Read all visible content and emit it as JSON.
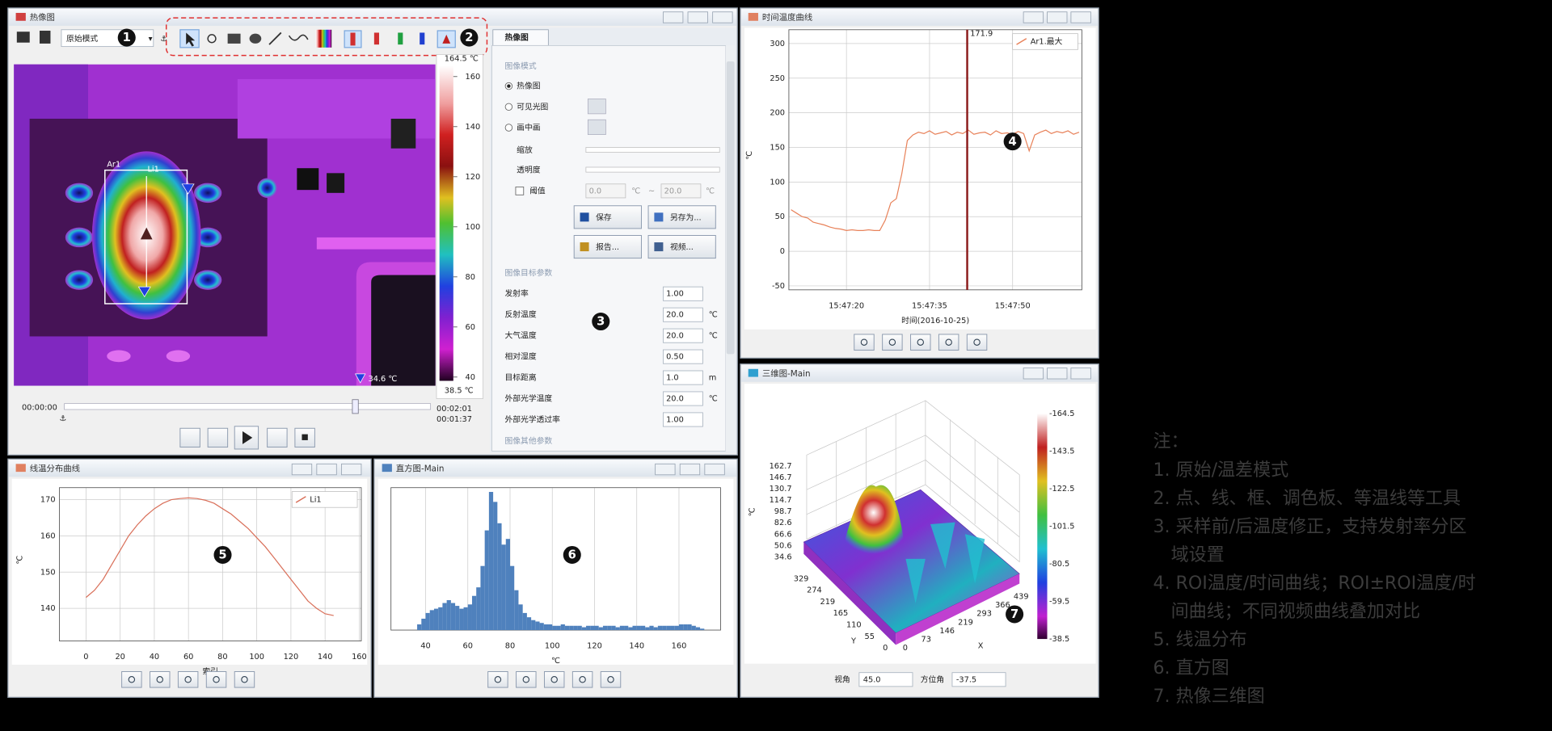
{
  "main_window": {
    "title": "热像图",
    "mode": "原始模式",
    "image_labels": {
      "area": "Ar1",
      "line": "Li1",
      "min": "34.6 ℃"
    },
    "colorbar": {
      "lim": [
        38.5,
        164.5
      ],
      "ticks": [
        160,
        140,
        120,
        100,
        80,
        60,
        40
      ],
      "max_label": "164.5 ℃",
      "min_label": "38.5 ℃"
    },
    "timeline": {
      "start": "00:00:00",
      "end": "00:02:01",
      "current": "00:01:37"
    },
    "panel": {
      "tab": "热像图",
      "mode_section": "图像模式",
      "modes": [
        "热像图",
        "可见光图",
        "画中画"
      ],
      "zoom": "缩放",
      "opacity": "透明度",
      "threshold": "阈值",
      "threshold_low": "0.0",
      "threshold_high": "20.0",
      "unit": "℃",
      "range_sep": "~",
      "buttons": [
        "保存",
        "另存为...",
        "报告...",
        "视频..."
      ],
      "params_section": "图像目标参数",
      "params": [
        {
          "label": "发射率",
          "value": "1.00"
        },
        {
          "label": "反射温度",
          "value": "20.0",
          "unit": "℃"
        },
        {
          "label": "大气温度",
          "value": "20.0",
          "unit": "℃"
        },
        {
          "label": "相对湿度",
          "value": "0.50"
        },
        {
          "label": "目标距离",
          "value": "1.0",
          "unit": "m"
        },
        {
          "label": "外部光学温度",
          "value": "20.0",
          "unit": "℃"
        },
        {
          "label": "外部光学透过率",
          "value": "1.00"
        }
      ],
      "other_section": "图像其他参数"
    }
  },
  "windows": {
    "time_curve": "时间温度曲线",
    "line_curve": "线温分布曲线",
    "histogram": "直方图-Main",
    "view3d": "三维图-Main"
  },
  "view3d": {
    "z_label": "℃",
    "z_ticks": [
      162.7,
      146.7,
      130.7,
      114.7,
      98.7,
      82.6,
      66.6,
      50.6,
      34.6
    ],
    "y_ticks": [
      329,
      274,
      219,
      165,
      110,
      55,
      0
    ],
    "x_ticks": [
      0,
      73,
      146,
      219,
      293,
      366,
      439
    ],
    "y_label": "Y",
    "x_label": "X",
    "colorbar_labels": [
      "-164.5",
      "-143.5",
      "-122.5",
      "-101.5",
      "-80.5",
      "-59.5",
      "-38.5"
    ],
    "elevation_label": "视角",
    "elevation": "45.0",
    "azimuth_label": "方位角",
    "azimuth": "-37.5"
  },
  "markers": [
    "1",
    "2",
    "3",
    "4",
    "5",
    "6",
    "7"
  ],
  "notes": {
    "heading": "注：",
    "items": [
      [
        "1. 原始/温差模式"
      ],
      [
        "2. 点、线、框、调色板、等温线等工具"
      ],
      [
        "3. 采样前/后温度修正，支持发射率分区",
        "域设置"
      ],
      [
        "4. ROI温度/时间曲线；ROI±ROI温度/时",
        "间曲线；不同视频曲线叠加对比"
      ],
      [
        "5. 线温分布"
      ],
      [
        "6. 直方图"
      ],
      [
        "7. 热像三维图"
      ]
    ]
  },
  "chart_data": [
    {
      "type": "line",
      "x_label": "时间(2016-10-25)",
      "y_label": "℃",
      "xlim": [
        56829.6,
        56882.5
      ],
      "ylim": [
        -55.7,
        320
      ],
      "xticks": [
        {
          "value": 56840,
          "label": "15:47:20"
        },
        {
          "value": 56855,
          "label": "15:47:35"
        },
        {
          "value": 56870,
          "label": "15:47:50"
        }
      ],
      "yticks": [
        300,
        250,
        200,
        150,
        100,
        50,
        0,
        -50
      ],
      "grid": true,
      "legend": "top-right",
      "cursor": {
        "x": 56861.8,
        "value": 171.9,
        "color": "#8b1a1a"
      },
      "series": [
        {
          "name": "Ar1.最大",
          "color": "#e8825a",
          "x": [
            56830,
            56831,
            56832,
            56833,
            56834,
            56835,
            56836,
            56837,
            56838,
            56839,
            56840,
            56841,
            56842,
            56843,
            56844,
            56845,
            56846,
            56847,
            56848,
            56849,
            56850,
            56851,
            56852,
            56853,
            56854,
            56855,
            56856,
            56857,
            56858,
            56859,
            56860,
            56861,
            56862,
            56863,
            56864,
            56865,
            56866,
            56867,
            56868,
            56869,
            56870,
            56871,
            56872,
            56873,
            56874,
            56875,
            56876,
            56877,
            56878,
            56879,
            56880,
            56881,
            56882
          ],
          "values": [
            60,
            55,
            50,
            48,
            42,
            40,
            38,
            35,
            33,
            32,
            30,
            31,
            30,
            30,
            31,
            30,
            30,
            45,
            70,
            76,
            112,
            160,
            168,
            172,
            170,
            174,
            169,
            171,
            173,
            168,
            172,
            170,
            175,
            169,
            171,
            172,
            168,
            174,
            170,
            171,
            169,
            173,
            170,
            145,
            168,
            172,
            175,
            170,
            173,
            171,
            174,
            169,
            172
          ]
        }
      ]
    },
    {
      "type": "line",
      "x_label": "索引",
      "y_label": "℃",
      "xlim": [
        -15.6,
        161.2
      ],
      "ylim": [
        131,
        173.3
      ],
      "xticks": [
        0,
        20,
        40,
        60,
        80,
        100,
        120,
        140,
        160
      ],
      "yticks": [
        170,
        160,
        150,
        140
      ],
      "grid": true,
      "legend": "top-right",
      "series": [
        {
          "name": "Li1",
          "color": "#d9705a",
          "x": [
            0,
            5,
            10,
            15,
            20,
            25,
            30,
            35,
            40,
            45,
            50,
            55,
            60,
            65,
            70,
            75,
            80,
            85,
            90,
            95,
            100,
            105,
            110,
            115,
            120,
            125,
            130,
            135,
            140,
            145
          ],
          "values": [
            143,
            145,
            148,
            152,
            156,
            160,
            163,
            165.5,
            167.5,
            169,
            170,
            170.3,
            170.5,
            170.3,
            169.8,
            169,
            167.5,
            166,
            164,
            162,
            159.5,
            157,
            154,
            151,
            148,
            145,
            142,
            140,
            138.5,
            138
          ]
        }
      ]
    },
    {
      "type": "histogram",
      "x_label": "℃",
      "xlim": [
        23.6,
        179.7
      ],
      "ylim": [
        0,
        100
      ],
      "xticks": [
        40,
        60,
        80,
        100,
        120,
        140,
        160
      ],
      "grid": true,
      "color": "#4f81bd",
      "bins": [
        36,
        38,
        40,
        42,
        44,
        46,
        48,
        50,
        52,
        54,
        56,
        58,
        60,
        62,
        64,
        66,
        68,
        70,
        72,
        74,
        76,
        78,
        80,
        82,
        84,
        86,
        88,
        90,
        92,
        94,
        96,
        98,
        100,
        102,
        104,
        106,
        108,
        110,
        112,
        114,
        116,
        118,
        120,
        122,
        124,
        126,
        128,
        130,
        132,
        134,
        136,
        138,
        140,
        142,
        144,
        146,
        148,
        150,
        152,
        154,
        156,
        158,
        160,
        162,
        164,
        166,
        168,
        170,
        172
      ],
      "counts": [
        4,
        8,
        12,
        14,
        15,
        16,
        19,
        21,
        19,
        17,
        15,
        16,
        18,
        24,
        30,
        45,
        70,
        97,
        90,
        75,
        60,
        64,
        45,
        28,
        18,
        12,
        9,
        7,
        6,
        5,
        4,
        4,
        3,
        3,
        4,
        3,
        3,
        3,
        3,
        2,
        3,
        3,
        3,
        2,
        3,
        3,
        3,
        2,
        3,
        3,
        2,
        3,
        3,
        3,
        2,
        3,
        2,
        3,
        3,
        3,
        3,
        3,
        4,
        4,
        4,
        3,
        2,
        1
      ]
    }
  ]
}
